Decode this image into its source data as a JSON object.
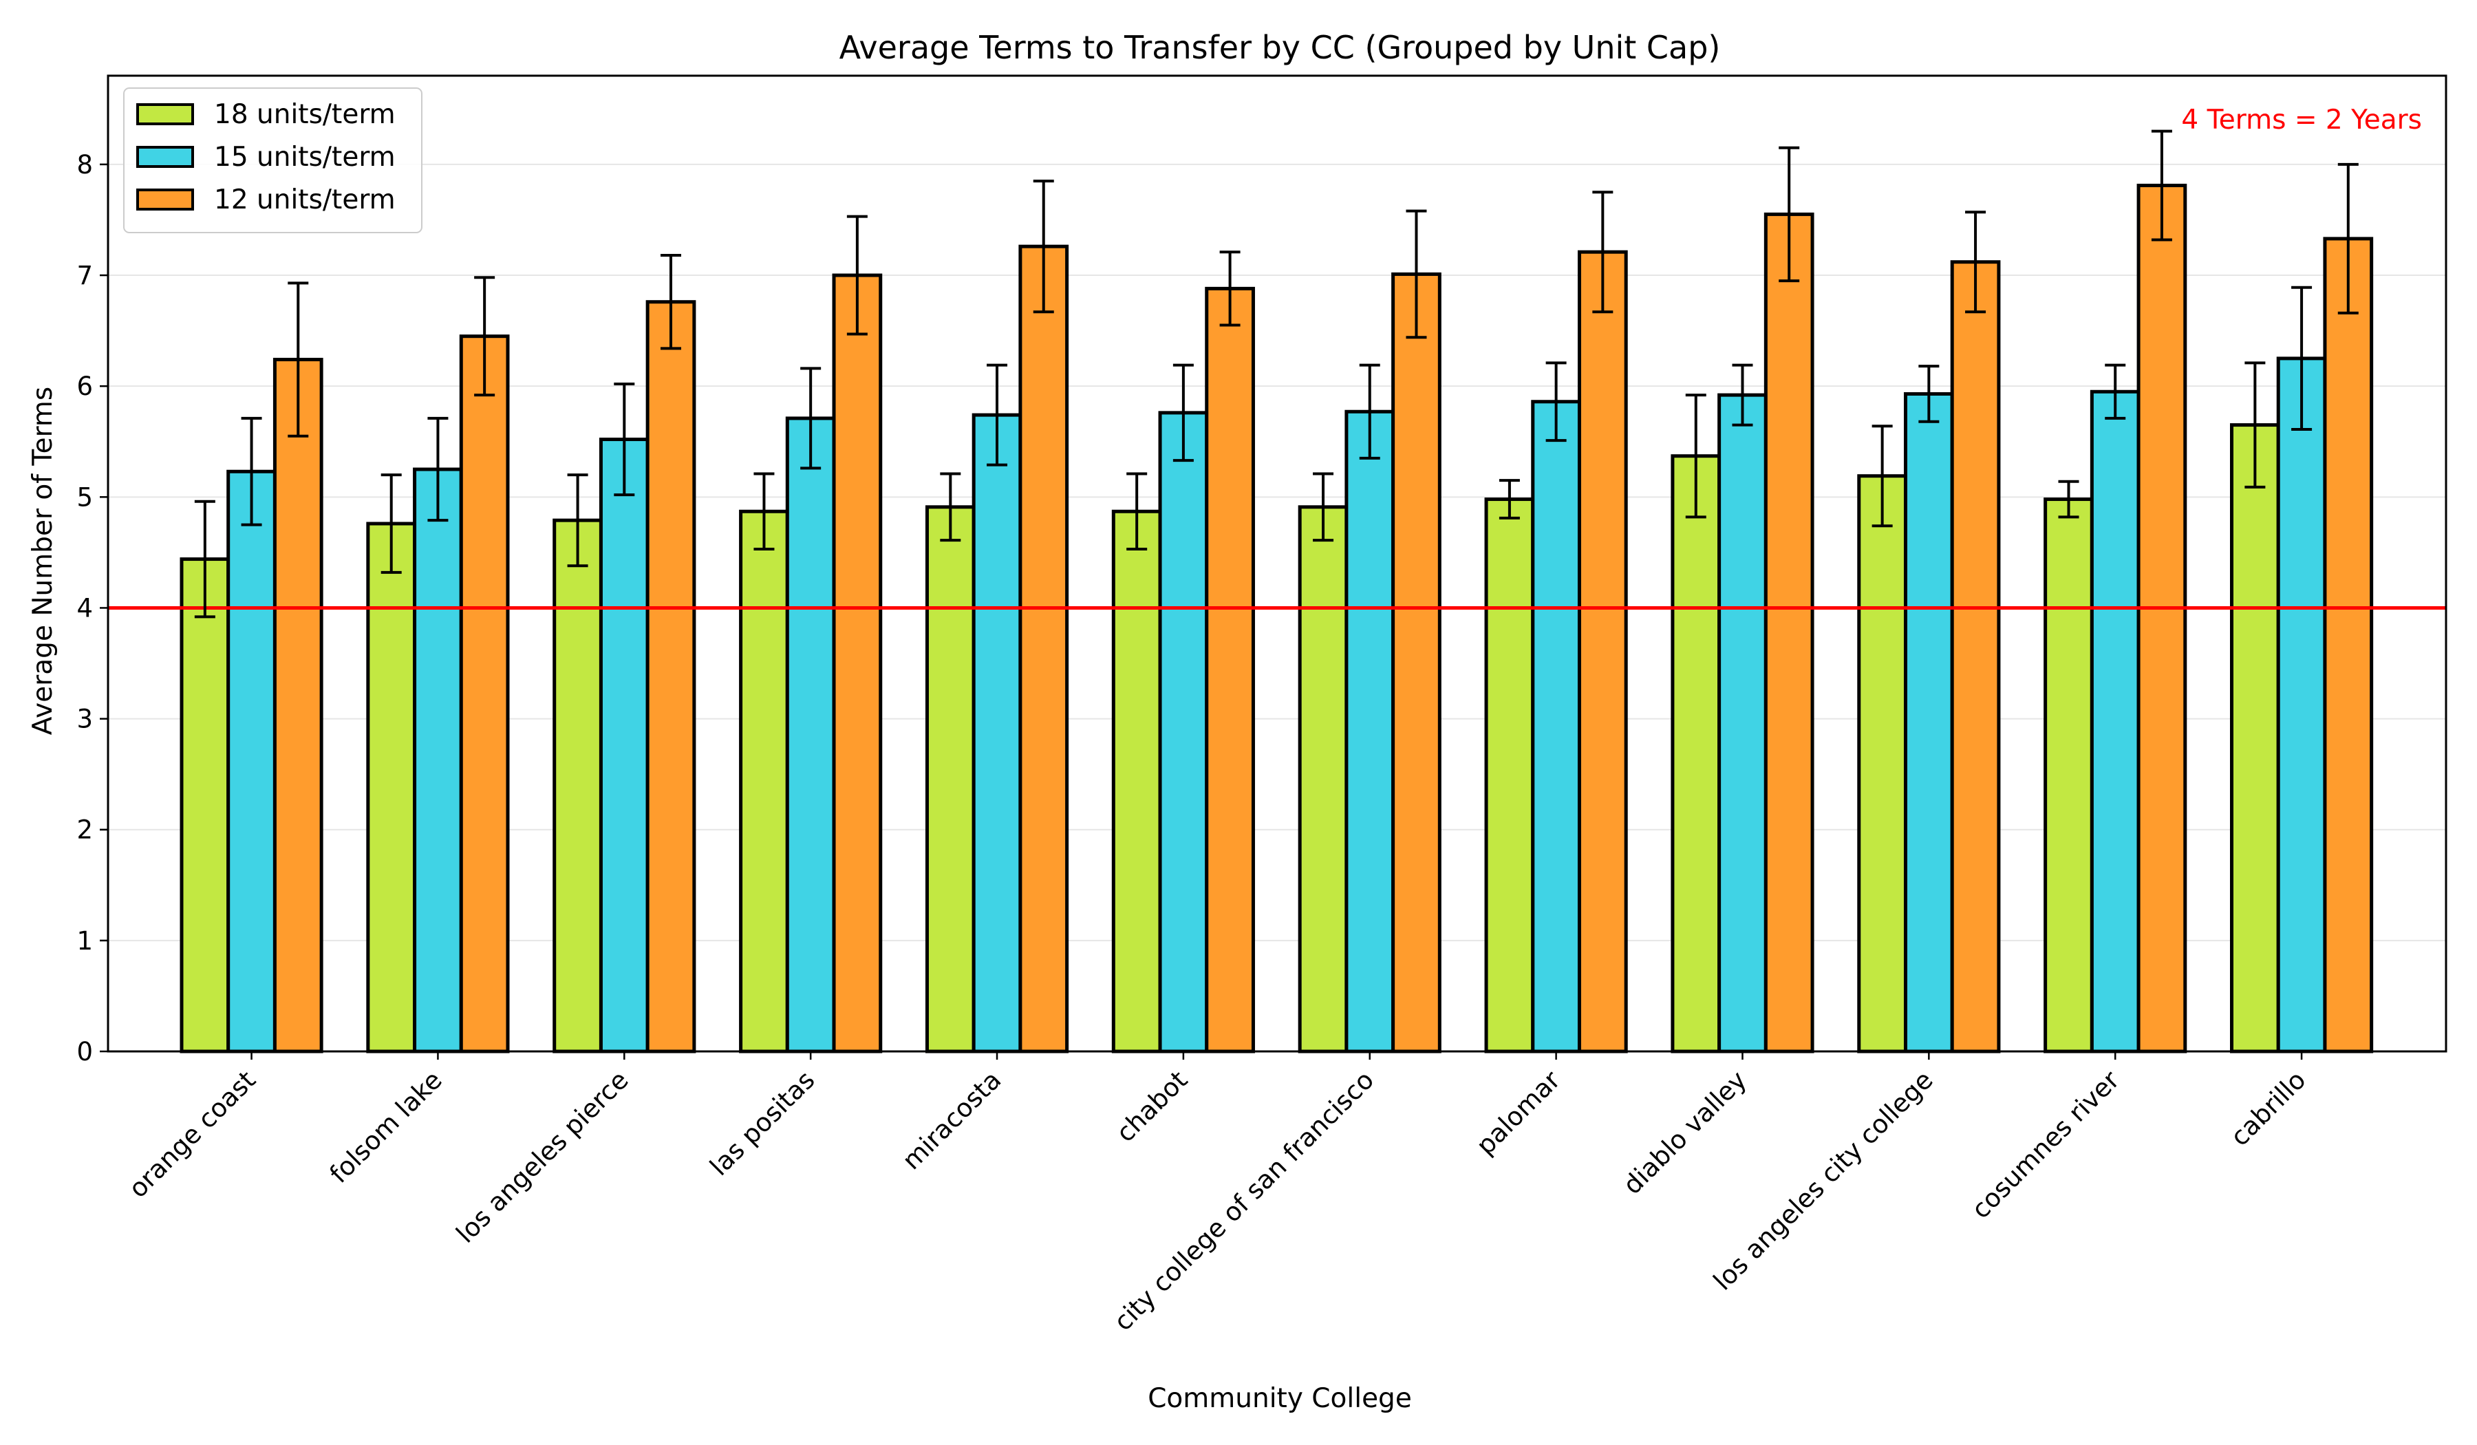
{
  "chart_data": {
    "type": "bar",
    "title": "Average Terms to Transfer by CC (Grouped by Unit Cap)",
    "xlabel": "Community College",
    "ylabel": "Average Number of Terms",
    "ylim": [
      0,
      8.8
    ],
    "yticks": [
      0,
      1,
      2,
      3,
      4,
      5,
      6,
      7,
      8
    ],
    "grid": "y",
    "legend_position": "top-left",
    "categories": [
      "orange coast",
      "folsom lake",
      "los angeles pierce",
      "las positas",
      "miracosta",
      "chabot",
      "city college of san francisco",
      "palomar",
      "diablo valley",
      "los angeles city college",
      "cosumnes river",
      "cabrillo"
    ],
    "series": [
      {
        "name": "18 units/term",
        "color": "#c2e842",
        "values": [
          4.44,
          4.76,
          4.79,
          4.87,
          4.91,
          4.87,
          4.91,
          4.98,
          5.37,
          5.19,
          4.98,
          5.65
        ],
        "errors": [
          0.52,
          0.44,
          0.41,
          0.34,
          0.3,
          0.34,
          0.3,
          0.17,
          0.55,
          0.45,
          0.16,
          0.56
        ]
      },
      {
        "name": "15 units/term",
        "color": "#40d3e5",
        "values": [
          5.23,
          5.25,
          5.52,
          5.71,
          5.74,
          5.76,
          5.77,
          5.86,
          5.92,
          5.93,
          5.95,
          6.25
        ],
        "errors": [
          0.48,
          0.46,
          0.5,
          0.45,
          0.45,
          0.43,
          0.42,
          0.35,
          0.27,
          0.25,
          0.24,
          0.64
        ]
      },
      {
        "name": "12 units/term",
        "color": "#ff9c2d",
        "values": [
          6.24,
          6.45,
          6.76,
          7.0,
          7.26,
          6.88,
          7.01,
          7.21,
          7.55,
          7.12,
          7.81,
          7.33
        ],
        "errors": [
          0.69,
          0.53,
          0.42,
          0.53,
          0.59,
          0.33,
          0.57,
          0.54,
          0.6,
          0.45,
          0.49,
          0.67
        ]
      }
    ],
    "reference_line": {
      "y": 4,
      "color": "#ff0000",
      "label": "4 Terms = 2 Years"
    }
  }
}
